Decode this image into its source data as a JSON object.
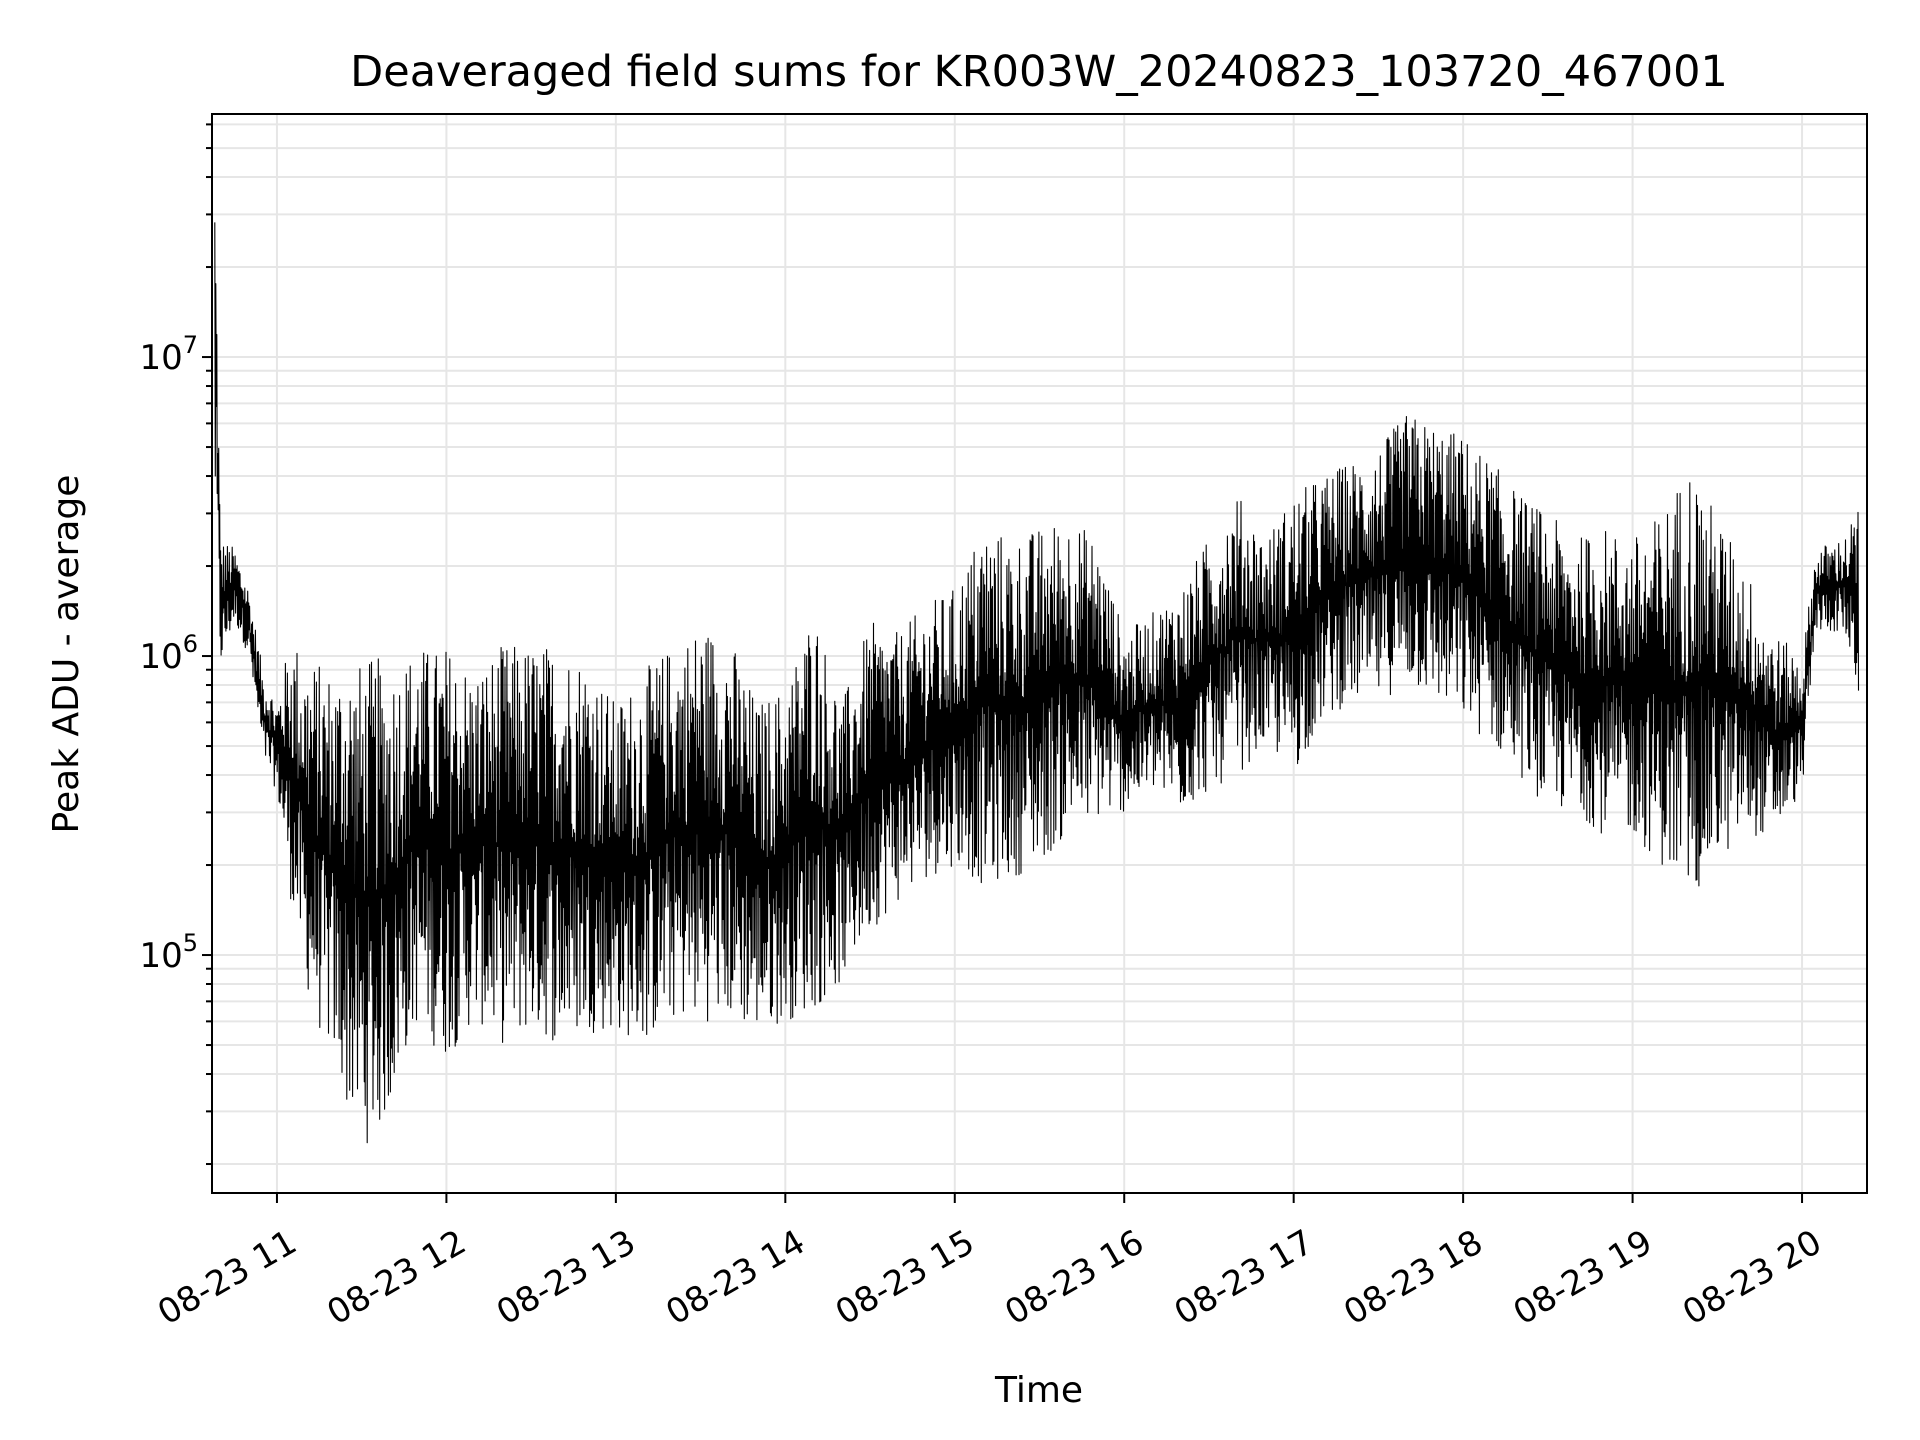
{
  "chart_data": {
    "type": "line",
    "title": "Deaveraged field sums for KR003W_20240823_103720_467001",
    "xlabel": "Time",
    "ylabel": "Peak ADU - average",
    "yscale": "log",
    "ylim": [
      16000,
      65000000
    ],
    "xlim": [
      "2024-08-23 10:37",
      "2024-08-23 20:23"
    ],
    "grid": true,
    "legend": "none",
    "line_color": "#000000",
    "x_ticks": [
      {
        "label": "08-23 11",
        "time": "2024-08-23 11:00"
      },
      {
        "label": "08-23 12",
        "time": "2024-08-23 12:00"
      },
      {
        "label": "08-23 13",
        "time": "2024-08-23 13:00"
      },
      {
        "label": "08-23 14",
        "time": "2024-08-23 14:00"
      },
      {
        "label": "08-23 15",
        "time": "2024-08-23 15:00"
      },
      {
        "label": "08-23 16",
        "time": "2024-08-23 16:00"
      },
      {
        "label": "08-23 17",
        "time": "2024-08-23 17:00"
      },
      {
        "label": "08-23 18",
        "time": "2024-08-23 18:00"
      },
      {
        "label": "08-23 19",
        "time": "2024-08-23 19:00"
      },
      {
        "label": "08-23 20",
        "time": "2024-08-23 20:00"
      }
    ],
    "y_ticks": [
      {
        "base": "10",
        "exp": "5",
        "value": 100000
      },
      {
        "base": "10",
        "exp": "6",
        "value": 1000000
      },
      {
        "base": "10",
        "exp": "7",
        "value": 10000000
      }
    ],
    "series": [
      {
        "x": [
          "2024-08-23 10:38",
          "2024-08-23 10:40",
          "2024-08-23 10:45",
          "2024-08-23 10:50",
          "2024-08-23 10:55",
          "2024-08-23 11:00",
          "2024-08-23 11:05",
          "2024-08-23 11:10",
          "2024-08-23 11:15",
          "2024-08-23 11:20",
          "2024-08-23 11:25",
          "2024-08-23 11:30",
          "2024-08-23 11:35",
          "2024-08-23 11:40",
          "2024-08-23 11:45",
          "2024-08-23 11:50",
          "2024-08-23 11:55",
          "2024-08-23 12:00",
          "2024-08-23 12:10",
          "2024-08-23 12:20",
          "2024-08-23 12:30",
          "2024-08-23 12:40",
          "2024-08-23 12:50",
          "2024-08-23 13:00",
          "2024-08-23 13:10",
          "2024-08-23 13:20",
          "2024-08-23 13:30",
          "2024-08-23 13:40",
          "2024-08-23 13:50",
          "2024-08-23 14:00",
          "2024-08-23 14:10",
          "2024-08-23 14:20",
          "2024-08-23 14:30",
          "2024-08-23 14:40",
          "2024-08-23 14:50",
          "2024-08-23 15:00",
          "2024-08-23 15:10",
          "2024-08-23 15:20",
          "2024-08-23 15:30",
          "2024-08-23 15:40",
          "2024-08-23 15:50",
          "2024-08-23 16:00",
          "2024-08-23 16:10",
          "2024-08-23 16:20",
          "2024-08-23 16:30",
          "2024-08-23 16:40",
          "2024-08-23 16:50",
          "2024-08-23 17:00",
          "2024-08-23 17:10",
          "2024-08-23 17:20",
          "2024-08-23 17:30",
          "2024-08-23 17:40",
          "2024-08-23 17:50",
          "2024-08-23 18:00",
          "2024-08-23 18:10",
          "2024-08-23 18:20",
          "2024-08-23 18:30",
          "2024-08-23 18:40",
          "2024-08-23 18:50",
          "2024-08-23 19:00",
          "2024-08-23 19:10",
          "2024-08-23 19:20",
          "2024-08-23 19:30",
          "2024-08-23 19:40",
          "2024-08-23 19:50",
          "2024-08-23 20:00",
          "2024-08-23 20:05",
          "2024-08-23 20:10",
          "2024-08-23 20:15",
          "2024-08-23 20:20"
        ],
        "high": [
          45000000,
          2500000,
          2300000,
          1700000,
          900000,
          700000,
          1200000,
          1000000,
          950000,
          900000,
          1000000,
          950000,
          1000000,
          950000,
          1000000,
          1100000,
          1050000,
          1100000,
          900000,
          1100000,
          1100000,
          1100000,
          1000000,
          700000,
          900000,
          1100000,
          1300000,
          1200000,
          700000,
          800000,
          1500000,
          700000,
          1300000,
          1200000,
          1500000,
          1700000,
          2800000,
          2500000,
          2700000,
          3000000,
          2500000,
          1200000,
          1400000,
          1700000,
          2500000,
          3500000,
          2500000,
          3500000,
          4000000,
          4500000,
          5000000,
          6500000,
          6000000,
          5500000,
          4500000,
          3500000,
          3000000,
          2500000,
          2700000,
          2500000,
          3000000,
          4500000,
          3000000,
          2000000,
          1200000,
          1000000,
          2300000,
          2400000,
          2500000,
          3200000
        ],
        "low": [
          3000000,
          900000,
          1300000,
          1000000,
          450000,
          350000,
          150000,
          80000,
          55000,
          45000,
          30000,
          23000,
          24000,
          30000,
          45000,
          60000,
          50000,
          45000,
          60000,
          50000,
          55000,
          50000,
          55000,
          55000,
          50000,
          60000,
          60000,
          60000,
          55000,
          60000,
          65000,
          80000,
          120000,
          150000,
          180000,
          200000,
          170000,
          180000,
          200000,
          250000,
          280000,
          300000,
          350000,
          300000,
          350000,
          400000,
          500000,
          400000,
          600000,
          700000,
          700000,
          800000,
          700000,
          600000,
          500000,
          400000,
          300000,
          300000,
          250000,
          250000,
          200000,
          150000,
          200000,
          250000,
          250000,
          350000,
          1200000,
          1200000,
          1200000,
          700000
        ]
      }
    ]
  }
}
